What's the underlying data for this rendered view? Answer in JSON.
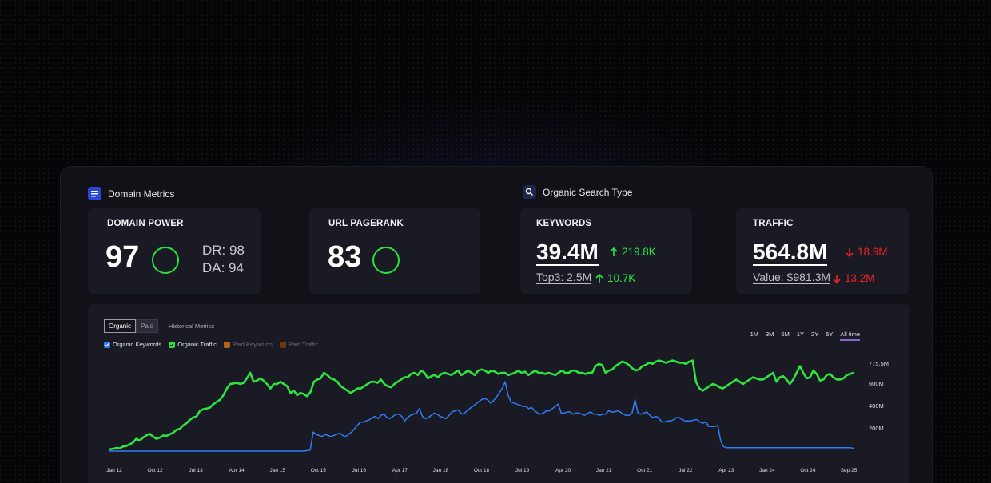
{
  "domain_metrics": {
    "heading": "Domain Metrics",
    "domain_power": {
      "title": "DOMAIN POWER",
      "value": "97",
      "dr": "DR: 98",
      "da": "DA: 94"
    },
    "url_pagerank": {
      "title": "URL PAGERANK",
      "value": "83"
    }
  },
  "organic_search": {
    "heading": "Organic Search Type",
    "keywords": {
      "title": "KEYWORDS",
      "value": "39.4M",
      "delta": "219.8K",
      "sub": "Top3: 2.5M",
      "sub_delta": "10.7K"
    },
    "traffic": {
      "title": "TRAFFIC",
      "value": "564.8M",
      "delta": "18.9M",
      "sub": "Value: $981.3M",
      "sub_delta": "13.2M"
    }
  },
  "chart_controls": {
    "tabs": [
      "Organic",
      "Paid"
    ],
    "historical": "Historical Metrics",
    "legend": [
      {
        "label": "Organic Keywords",
        "color": "#2f7cf6",
        "checked": true
      },
      {
        "label": "Organic Traffic",
        "color": "#2de53e",
        "checked": true
      },
      {
        "label": "Paid Keywords",
        "color": "#b0611c",
        "checked": false
      },
      {
        "label": "Paid Traffic",
        "color": "#6a3a14",
        "checked": false
      }
    ],
    "ranges": [
      "1M",
      "3M",
      "6M",
      "1Y",
      "2Y",
      "5Y",
      "All time"
    ],
    "active_range": "All time"
  },
  "chart_data": {
    "type": "line",
    "x_ticks": [
      "Jan 12",
      "Oct 12",
      "Jul 13",
      "Apr 14",
      "Jan 15",
      "Oct 15",
      "Jul 16",
      "Apr 17",
      "Jan 18",
      "Oct 18",
      "Jul 19",
      "Apr 20",
      "Jan 21",
      "Oct 21",
      "Jul 22",
      "Apr 23",
      "Jan 24",
      "Oct 24",
      "Sep 25"
    ],
    "y_ticks": [
      "775.5M",
      "600M",
      "400M",
      "200M"
    ],
    "ylim": [
      -100,
      850
    ],
    "series": [
      {
        "name": "Organic Traffic",
        "color": "#2de53e",
        "values": [
          15,
          20,
          28,
          25,
          40,
          45,
          60,
          75,
          110,
          95,
          120,
          140,
          155,
          130,
          110,
          120,
          140,
          135,
          150,
          165,
          190,
          200,
          230,
          250,
          280,
          300,
          310,
          360,
          375,
          380,
          390,
          420,
          440,
          460,
          500,
          560,
          600,
          605,
          610,
          600,
          610,
          650,
          700,
          620,
          630,
          650,
          630,
          600,
          560,
          600,
          600,
          620,
          600,
          580,
          520,
          540,
          500,
          520,
          510,
          490,
          530,
          620,
          640,
          650,
          700,
          680,
          650,
          640,
          620,
          580,
          560,
          540,
          520,
          540,
          560,
          560,
          580,
          600,
          620,
          620,
          610,
          640,
          600,
          580,
          570,
          600,
          620,
          640,
          660,
          660,
          690,
          700,
          680,
          720,
          700,
          650,
          670,
          680,
          660,
          690,
          700,
          690,
          680,
          700,
          720,
          680,
          700,
          720,
          700,
          680,
          720,
          730,
          720,
          700,
          720,
          710,
          690,
          700,
          700,
          680,
          690,
          700,
          720,
          700,
          710,
          680,
          700,
          720,
          700,
          700,
          690,
          700,
          690,
          680,
          700,
          720,
          700,
          700,
          720,
          720,
          700,
          700,
          690,
          700,
          700,
          760,
          780,
          770,
          700,
          720,
          730,
          760,
          780,
          800,
          790,
          770,
          740,
          720,
          730,
          760,
          770,
          790,
          780,
          800,
          810,
          800,
          790,
          800,
          810,
          800,
          790,
          790,
          780,
          800,
          810,
          620,
          560,
          540,
          560,
          580,
          600,
          590,
          570,
          560,
          580,
          600,
          620,
          640,
          620,
          600,
          620,
          640,
          660,
          650,
          640,
          640,
          660,
          680,
          700,
          620,
          660,
          670,
          640,
          600,
          640,
          700,
          760,
          700,
          650,
          660,
          720,
          690,
          630,
          640,
          680,
          690,
          660,
          640,
          640,
          650,
          680,
          690,
          700
        ]
      },
      {
        "name": "Organic Keywords",
        "color": "#2f7cf6",
        "values": [
          0,
          0,
          0,
          0,
          0,
          0,
          0,
          0,
          0,
          0,
          0,
          0,
          0,
          0,
          0,
          0,
          0,
          0,
          0,
          0,
          0,
          0,
          0,
          0,
          0,
          0,
          0,
          0,
          0,
          0,
          0,
          0,
          0,
          0,
          0,
          0,
          0,
          0,
          0,
          0,
          0,
          0,
          0,
          0,
          0,
          0,
          0,
          0,
          0,
          0,
          0,
          0,
          0,
          0,
          0,
          0,
          0,
          0,
          0,
          0,
          0,
          0,
          0,
          0,
          0,
          0,
          0,
          5,
          10,
          170,
          150,
          140,
          130,
          150,
          140,
          130,
          140,
          150,
          160,
          140,
          130,
          150,
          170,
          200,
          230,
          260,
          260,
          270,
          280,
          300,
          310,
          290,
          320,
          330,
          300,
          290,
          310,
          330,
          330,
          310,
          270,
          300,
          320,
          330,
          340,
          380,
          310,
          290,
          300,
          320,
          340,
          330,
          310,
          300,
          290,
          320,
          350,
          360,
          370,
          340,
          330,
          360,
          380,
          400,
          420,
          440,
          460,
          470,
          460,
          430,
          450,
          480,
          520,
          560,
          620,
          500,
          440,
          430,
          420,
          410,
          400,
          400,
          380,
          390,
          360,
          340,
          330,
          340,
          360,
          360,
          380,
          400,
          420,
          340,
          340,
          350,
          350,
          330,
          340,
          340,
          330,
          320,
          340,
          350,
          330,
          330,
          320,
          330,
          330,
          360,
          350,
          350,
          360,
          350,
          330,
          320,
          320,
          340,
          460,
          340,
          330,
          340,
          350,
          320,
          300,
          310,
          300,
          260,
          260,
          270,
          270,
          280,
          300,
          300,
          280,
          270,
          270,
          270,
          280,
          280,
          260,
          250,
          260,
          220,
          220,
          220,
          230,
          90,
          40,
          30,
          30,
          30,
          30,
          30,
          30,
          30,
          30,
          30,
          30,
          30,
          30,
          30,
          30,
          30,
          30,
          30,
          30,
          30,
          30,
          30,
          30,
          30,
          30,
          30,
          30,
          30,
          30,
          30,
          30,
          30,
          30,
          30,
          30,
          30,
          30,
          30,
          30,
          30,
          30,
          30,
          30,
          30,
          25
        ]
      }
    ]
  }
}
